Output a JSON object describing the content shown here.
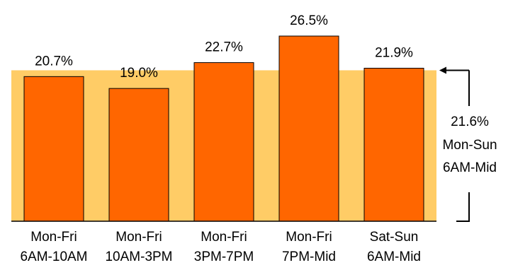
{
  "chart_data": {
    "type": "bar",
    "categories": [
      {
        "line1": "Mon-Fri",
        "line2": "6AM-10AM"
      },
      {
        "line1": "Mon-Fri",
        "line2": "10AM-3PM"
      },
      {
        "line1": "Mon-Fri",
        "line2": "3PM-7PM"
      },
      {
        "line1": "Mon-Fri",
        "line2": "7PM-Mid"
      },
      {
        "line1": "Sat-Sun",
        "line2": "6AM-Mid"
      }
    ],
    "values": [
      20.7,
      19.0,
      22.7,
      26.5,
      21.9
    ],
    "value_labels": [
      "20.7%",
      "19.0%",
      "22.7%",
      "26.5%",
      "21.9%"
    ],
    "ylim": [
      0,
      26.5
    ],
    "grid": false,
    "reference": {
      "value": 21.6,
      "value_label": "21.6%",
      "line1": "Mon-Sun",
      "line2": "6AM-Mid"
    },
    "colors": {
      "bar_fill": "#FF6600",
      "bar_stroke": "#000000",
      "reference_band": "#FFCC66",
      "axis": "#000000",
      "text": "#000000"
    }
  }
}
